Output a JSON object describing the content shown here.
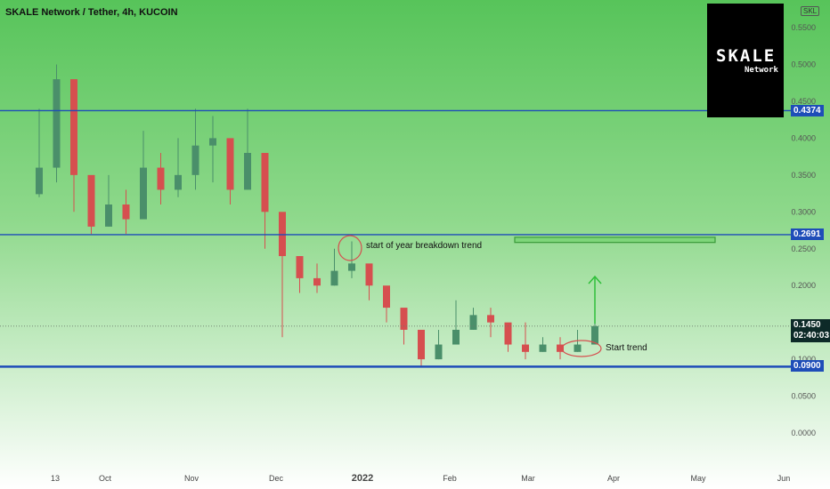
{
  "header": {
    "title": "SKALE Network / Tether, 4h, KUCOIN",
    "ticker_badge": "SKL"
  },
  "logo": {
    "main": "SKALE",
    "sub": "Network"
  },
  "price_tags": {
    "level_high": "0.4374",
    "level_mid": "0.2691",
    "current_price": "0.1450",
    "countdown": "02:40:03",
    "level_low": "0.0900"
  },
  "annotations": {
    "breakdown": "start of year breakdown trend",
    "start_trend": "Start trend"
  },
  "colors": {
    "background_top": "#57c45a",
    "background_bottom": "#ffffff",
    "level_line": "#1e4db8",
    "candle_up": "#4a8f6a",
    "candle_down": "#d64f4f",
    "arrow": "#2fbf3a",
    "target_box": "#7ed67a"
  },
  "chart_data": {
    "type": "candlestick",
    "symbol": "SKALE Network / Tether",
    "timeframe": "4h",
    "exchange": "KUCOIN",
    "y_ticks": [
      "0.5500",
      "0.5000",
      "0.4500",
      "0.4000",
      "0.3500",
      "0.3000",
      "0.2500",
      "0.2000",
      "0.1500",
      "0.1000",
      "0.0500",
      "0.0000"
    ],
    "x_ticks": [
      "13",
      "Oct",
      "Nov",
      "Dec",
      "2022",
      "Feb",
      "Mar",
      "Apr",
      "May",
      "Jun"
    ],
    "ylim": [
      0,
      0.55
    ],
    "horizontal_levels": [
      0.4374,
      0.2691,
      0.09
    ],
    "current_price": 0.145,
    "target_zone": [
      0.2585,
      0.2655
    ],
    "series": [
      {
        "name": "",
        "x": [
          "13",
          "Sep 18",
          "Sep 25",
          "Oct",
          "Oct 8",
          "Oct 15",
          "Oct 22",
          "Oct 29",
          "Nov",
          "Nov 8",
          "Nov 15",
          "Nov 22",
          "Nov 29",
          "Dec",
          "Dec 6",
          "Dec 13",
          "Dec 20",
          "Dec 27",
          "2022",
          "Jan 8",
          "Jan 15",
          "Jan 22",
          "Jan 29",
          "Feb",
          "Feb 8",
          "Feb 15",
          "Feb 22",
          "Feb 28",
          "Mar",
          "Mar 8",
          "Mar 15",
          "Mar 22",
          "Mar 26"
        ],
        "close": [
          0.36,
          0.48,
          0.35,
          0.28,
          0.31,
          0.29,
          0.36,
          0.33,
          0.35,
          0.39,
          0.4,
          0.33,
          0.38,
          0.3,
          0.24,
          0.21,
          0.2,
          0.22,
          0.23,
          0.2,
          0.17,
          0.14,
          0.1,
          0.12,
          0.14,
          0.16,
          0.15,
          0.12,
          0.11,
          0.12,
          0.11,
          0.12,
          0.145
        ],
        "high": [
          0.44,
          0.5,
          0.42,
          0.32,
          0.35,
          0.33,
          0.41,
          0.38,
          0.4,
          0.44,
          0.43,
          0.38,
          0.44,
          0.33,
          0.27,
          0.24,
          0.23,
          0.25,
          0.26,
          0.22,
          0.19,
          0.16,
          0.12,
          0.14,
          0.18,
          0.17,
          0.17,
          0.14,
          0.15,
          0.13,
          0.13,
          0.14,
          0.15
        ],
        "low": [
          0.32,
          0.34,
          0.3,
          0.27,
          0.28,
          0.27,
          0.3,
          0.31,
          0.32,
          0.33,
          0.34,
          0.31,
          0.33,
          0.25,
          0.13,
          0.19,
          0.19,
          0.2,
          0.21,
          0.18,
          0.15,
          0.12,
          0.09,
          0.1,
          0.12,
          0.14,
          0.13,
          0.11,
          0.1,
          0.11,
          0.1,
          0.11,
          0.12
        ]
      }
    ]
  }
}
